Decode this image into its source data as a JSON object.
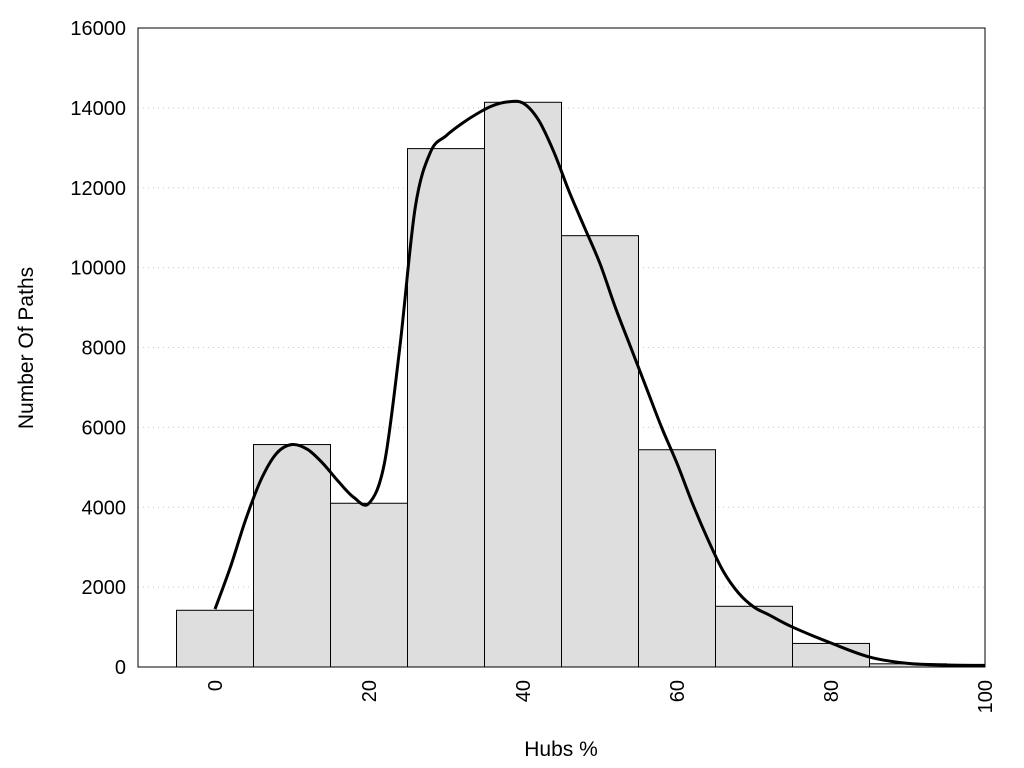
{
  "chart_data": {
    "type": "bar",
    "title": "",
    "xlabel": "Hubs %",
    "ylabel": "Number Of Paths",
    "xlim": [
      -10,
      100
    ],
    "ylim": [
      0,
      16000
    ],
    "grid": true,
    "x_ticks": [
      0,
      20,
      40,
      60,
      80,
      100
    ],
    "y_ticks": [
      0,
      2000,
      4000,
      6000,
      8000,
      10000,
      12000,
      14000,
      16000
    ],
    "bin_width": 10,
    "bins": [
      {
        "x": 0,
        "value": 1420
      },
      {
        "x": 10,
        "value": 5570
      },
      {
        "x": 20,
        "value": 4100
      },
      {
        "x": 30,
        "value": 12980
      },
      {
        "x": 40,
        "value": 14140
      },
      {
        "x": 50,
        "value": 10800
      },
      {
        "x": 60,
        "value": 5440
      },
      {
        "x": 70,
        "value": 1520
      },
      {
        "x": 80,
        "value": 590
      },
      {
        "x": 90,
        "value": 80
      }
    ],
    "curve": {
      "x": [
        0,
        2,
        4,
        6,
        8,
        10,
        12,
        14,
        16,
        18,
        20,
        22,
        24,
        26,
        28,
        30,
        32,
        34,
        36,
        38,
        40,
        42,
        44,
        46,
        48,
        50,
        52,
        54,
        56,
        58,
        60,
        62,
        64,
        66,
        68,
        70,
        72,
        75,
        80,
        85,
        90,
        95,
        100
      ],
      "y": [
        1450,
        2500,
        3700,
        4700,
        5350,
        5570,
        5450,
        5100,
        4650,
        4250,
        4100,
        5100,
        8000,
        11500,
        12900,
        13300,
        13600,
        13850,
        14050,
        14150,
        14120,
        13700,
        12900,
        11900,
        11000,
        10100,
        9000,
        8000,
        7000,
        6000,
        5100,
        4100,
        3200,
        2400,
        1850,
        1500,
        1300,
        1000,
        600,
        250,
        90,
        50,
        40
      ]
    }
  }
}
